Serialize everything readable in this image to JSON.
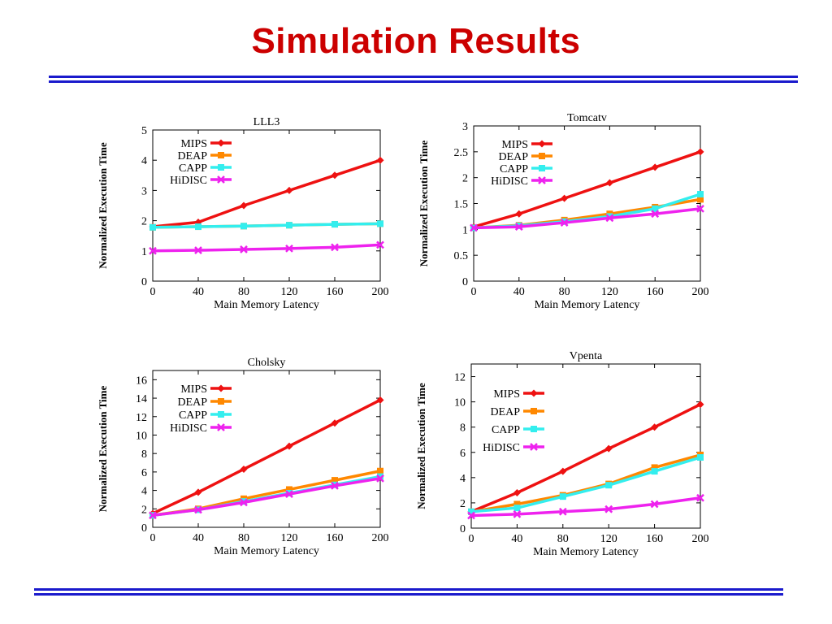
{
  "slide": {
    "title": "Simulation Results"
  },
  "colors": {
    "title": "#cc0000",
    "rules": "#1a1acc"
  },
  "chart_data": [
    {
      "type": "line",
      "title": "LLL3",
      "xlabel": "Main Memory Latency",
      "ylabel": "Normalized Execution Time",
      "x": [
        0,
        40,
        80,
        120,
        160,
        200
      ],
      "xlim": [
        0,
        200
      ],
      "ylim": [
        0,
        5
      ],
      "yticks": [
        0,
        1,
        2,
        3,
        4,
        5
      ],
      "legend_position": "top-left",
      "series": [
        {
          "name": "MIPS",
          "color": "#ee1111",
          "marker": "diamond",
          "values": [
            1.8,
            1.95,
            2.5,
            3.0,
            3.5,
            4.0
          ]
        },
        {
          "name": "DEAP",
          "color": "#ff8800",
          "marker": "square",
          "values": [
            1.78,
            1.8,
            1.82,
            1.85,
            1.88,
            1.9
          ]
        },
        {
          "name": "CAPP",
          "color": "#33eeee",
          "marker": "square",
          "values": [
            1.78,
            1.8,
            1.82,
            1.85,
            1.88,
            1.9
          ]
        },
        {
          "name": "HiDISC",
          "color": "#ee22ee",
          "marker": "x",
          "values": [
            1.0,
            1.02,
            1.05,
            1.08,
            1.12,
            1.2
          ]
        }
      ]
    },
    {
      "type": "line",
      "title": "Tomcatv",
      "xlabel": "Main Memory Latency",
      "ylabel": "Normalized Execution Time",
      "x": [
        0,
        40,
        80,
        120,
        160,
        200
      ],
      "xlim": [
        0,
        200
      ],
      "ylim": [
        0,
        3
      ],
      "yticks": [
        0,
        0.5,
        1,
        1.5,
        2,
        2.5,
        3
      ],
      "legend_position": "top-left",
      "series": [
        {
          "name": "MIPS",
          "color": "#ee1111",
          "marker": "diamond",
          "values": [
            1.05,
            1.3,
            1.6,
            1.9,
            2.2,
            2.5
          ]
        },
        {
          "name": "DEAP",
          "color": "#ff8800",
          "marker": "square",
          "values": [
            1.03,
            1.08,
            1.18,
            1.3,
            1.43,
            1.58
          ]
        },
        {
          "name": "CAPP",
          "color": "#33eeee",
          "marker": "square",
          "values": [
            1.03,
            1.07,
            1.15,
            1.25,
            1.4,
            1.68
          ]
        },
        {
          "name": "HiDISC",
          "color": "#ee22ee",
          "marker": "x",
          "values": [
            1.03,
            1.05,
            1.13,
            1.22,
            1.3,
            1.4
          ]
        }
      ]
    },
    {
      "type": "line",
      "title": "Cholsky",
      "xlabel": "Main Memory Latency",
      "ylabel": "Normalized Execution Time",
      "x": [
        0,
        40,
        80,
        120,
        160,
        200
      ],
      "xlim": [
        0,
        200
      ],
      "ylim": [
        0,
        17
      ],
      "yticks": [
        0,
        2,
        4,
        6,
        8,
        10,
        12,
        14,
        16
      ],
      "legend_position": "top-left",
      "series": [
        {
          "name": "MIPS",
          "color": "#ee1111",
          "marker": "diamond",
          "values": [
            1.5,
            3.8,
            6.3,
            8.8,
            11.3,
            13.8
          ]
        },
        {
          "name": "DEAP",
          "color": "#ff8800",
          "marker": "square",
          "values": [
            1.3,
            2.0,
            3.1,
            4.1,
            5.1,
            6.1
          ]
        },
        {
          "name": "CAPP",
          "color": "#33eeee",
          "marker": "square",
          "values": [
            1.3,
            1.9,
            2.8,
            3.7,
            4.6,
            5.5
          ]
        },
        {
          "name": "HiDISC",
          "color": "#ee22ee",
          "marker": "x",
          "values": [
            1.3,
            1.9,
            2.7,
            3.6,
            4.5,
            5.3
          ]
        }
      ]
    },
    {
      "type": "line",
      "title": "Vpenta",
      "xlabel": "Main Memory Latency",
      "ylabel": "Normalized Execution Time",
      "x": [
        0,
        40,
        80,
        120,
        160,
        200
      ],
      "xlim": [
        0,
        200
      ],
      "ylim": [
        0,
        13
      ],
      "yticks": [
        0,
        2,
        4,
        6,
        8,
        10,
        12
      ],
      "legend_position": "top-left",
      "series": [
        {
          "name": "MIPS",
          "color": "#ee1111",
          "marker": "diamond",
          "values": [
            1.3,
            2.8,
            4.5,
            6.3,
            8.0,
            9.8
          ]
        },
        {
          "name": "DEAP",
          "color": "#ff8800",
          "marker": "square",
          "values": [
            1.3,
            1.9,
            2.6,
            3.5,
            4.8,
            5.8
          ]
        },
        {
          "name": "CAPP",
          "color": "#33eeee",
          "marker": "square",
          "values": [
            1.3,
            1.6,
            2.5,
            3.4,
            4.5,
            5.6
          ]
        },
        {
          "name": "HiDISC",
          "color": "#ee22ee",
          "marker": "x",
          "values": [
            1.0,
            1.1,
            1.3,
            1.5,
            1.9,
            2.4
          ]
        }
      ]
    }
  ]
}
